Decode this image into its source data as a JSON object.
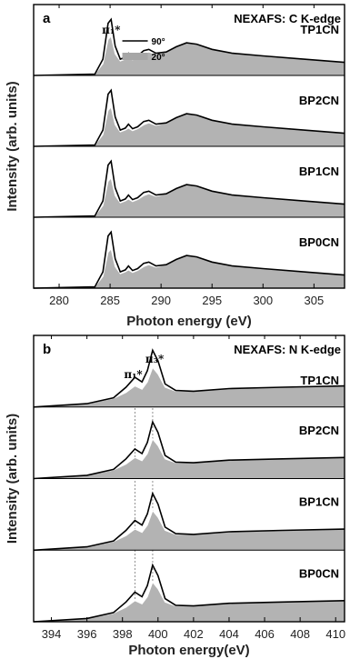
{
  "chart_data": [
    {
      "type": "line",
      "panel": "a",
      "title": "NEXAFS: C K-edge",
      "xlabel": "Photon energy (eV)",
      "ylabel": "Intensity (arb. units)",
      "xlim": [
        277.5,
        308
      ],
      "xticks": [
        280,
        285,
        290,
        295,
        300,
        305
      ],
      "peak_labels": [
        {
          "text": "π₁*",
          "x": 285.0
        }
      ],
      "legend": [
        {
          "label": "90°",
          "style": "black line"
        },
        {
          "label": "20°",
          "style": "gray fill"
        }
      ],
      "legend_position": "top",
      "samples": [
        "TP1CN",
        "BP2CN",
        "BP1CN",
        "BP0CN"
      ],
      "series": [
        {
          "name": "90°",
          "x": [
            277.5,
            283.5,
            284.3,
            284.8,
            285.1,
            285.5,
            286.0,
            286.5,
            286.8,
            287.2,
            287.7,
            288.3,
            288.8,
            289.5,
            290.5,
            291.5,
            292.5,
            293.5,
            295.0,
            297.0,
            300.0,
            304.0,
            308.0
          ],
          "y": [
            0.0,
            0.02,
            0.25,
            0.8,
            0.86,
            0.45,
            0.25,
            0.28,
            0.34,
            0.27,
            0.3,
            0.38,
            0.4,
            0.34,
            0.36,
            0.44,
            0.5,
            0.48,
            0.4,
            0.34,
            0.3,
            0.25,
            0.2
          ]
        },
        {
          "name": "20°",
          "x": [
            277.5,
            283.5,
            284.3,
            284.8,
            285.1,
            285.5,
            286.0,
            286.5,
            286.8,
            287.2,
            287.7,
            288.3,
            288.8,
            289.5,
            290.5,
            291.5,
            292.5,
            293.5,
            295.0,
            297.0,
            300.0,
            304.0,
            308.0
          ],
          "y": [
            0.0,
            0.02,
            0.18,
            0.55,
            0.6,
            0.33,
            0.22,
            0.25,
            0.28,
            0.24,
            0.27,
            0.33,
            0.36,
            0.32,
            0.36,
            0.44,
            0.5,
            0.48,
            0.4,
            0.34,
            0.3,
            0.25,
            0.2
          ]
        }
      ]
    },
    {
      "type": "line",
      "panel": "b",
      "title": "NEXAFS: N K-edge",
      "xlabel": "Photon energy(eV)",
      "ylabel": "Intensity (arb. units)",
      "xlim": [
        393,
        410.5
      ],
      "xticks": [
        394,
        396,
        398,
        400,
        402,
        404,
        406,
        408,
        410
      ],
      "peak_labels": [
        {
          "text": "π₁*",
          "x": 398.7
        },
        {
          "text": "π₃*",
          "x": 399.7
        }
      ],
      "samples": [
        "TP1CN",
        "BP2CN",
        "BP1CN",
        "BP0CN"
      ],
      "series": [
        {
          "name": "90°",
          "x": [
            393.0,
            396.0,
            397.5,
            398.2,
            398.7,
            399.1,
            399.4,
            399.7,
            400.0,
            400.4,
            401.0,
            402.0,
            404.0,
            407.0,
            410.5
          ],
          "y": [
            0.0,
            0.05,
            0.14,
            0.3,
            0.45,
            0.38,
            0.55,
            0.86,
            0.7,
            0.35,
            0.25,
            0.24,
            0.28,
            0.3,
            0.32
          ]
        },
        {
          "name": "20°",
          "x": [
            393.0,
            396.0,
            397.5,
            398.2,
            398.7,
            399.1,
            399.4,
            399.7,
            400.0,
            400.4,
            401.0,
            402.0,
            404.0,
            407.0,
            410.5
          ],
          "y": [
            0.0,
            0.05,
            0.13,
            0.22,
            0.32,
            0.27,
            0.38,
            0.6,
            0.5,
            0.3,
            0.24,
            0.24,
            0.28,
            0.3,
            0.32
          ]
        }
      ]
    }
  ]
}
